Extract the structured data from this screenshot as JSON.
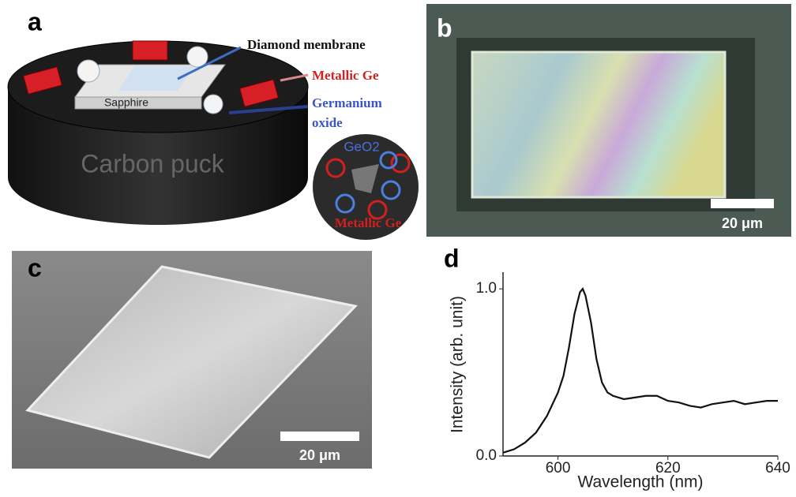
{
  "panels": {
    "a": {
      "label": "a",
      "diamond_membrane": "Diamond membrane",
      "metallic_ge": "Metallic Ge",
      "germanium_oxide": [
        "Germanium",
        "oxide"
      ],
      "sapphire": "Sapphire",
      "carbon_puck": "Carbon puck",
      "inset_geo2": "GeO2",
      "inset_metallic_ge": "Metallic Ge"
    },
    "b": {
      "label": "b",
      "scale_bar": "20 μm"
    },
    "c": {
      "label": "c",
      "scale_bar": "20 μm"
    },
    "d": {
      "label": "d"
    }
  },
  "chart_data": {
    "type": "line",
    "xlabel": "Wavelength (nm)",
    "ylabel": "Intensity (arb. unit)",
    "x": [
      590,
      592,
      594,
      596,
      598,
      600,
      601,
      602,
      603,
      604,
      604.5,
      605,
      606,
      607,
      608,
      609,
      610,
      612,
      614,
      616,
      618,
      620,
      622,
      624,
      626,
      628,
      630,
      632,
      634,
      636,
      638,
      640
    ],
    "series": [
      {
        "color": "#111111",
        "values": [
          0.02,
          0.04,
          0.08,
          0.14,
          0.24,
          0.38,
          0.48,
          0.65,
          0.85,
          0.98,
          1.0,
          0.96,
          0.8,
          0.58,
          0.44,
          0.38,
          0.36,
          0.34,
          0.35,
          0.36,
          0.36,
          0.33,
          0.32,
          0.3,
          0.29,
          0.31,
          0.32,
          0.33,
          0.31,
          0.32,
          0.33,
          0.33
        ]
      }
    ],
    "xlim": [
      590,
      640
    ],
    "ylim": [
      0,
      1.1
    ],
    "xticks": [
      600,
      620,
      640
    ],
    "yticks": [
      {
        "value": 0,
        "label": "0.0"
      },
      {
        "value": 1,
        "label": "1.0"
      }
    ]
  }
}
